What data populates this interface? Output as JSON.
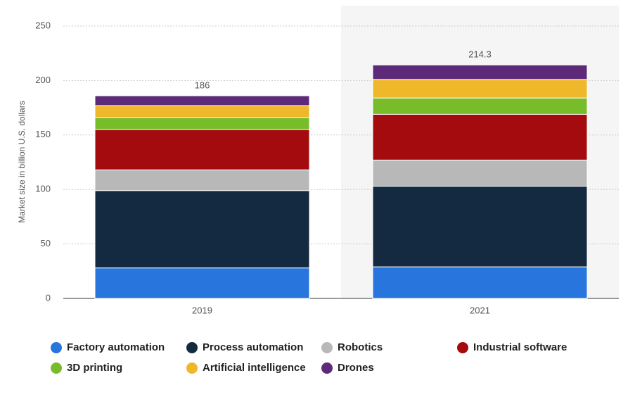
{
  "chart_data": {
    "type": "stacked-bar",
    "y_label": "Market size in billion U.S. dollars",
    "categories": [
      "2019",
      "2021"
    ],
    "series": [
      {
        "name": "Factory automation",
        "color": "#2876dd",
        "values": [
          28,
          29
        ]
      },
      {
        "name": "Process automation",
        "color": "#132a40",
        "values": [
          71,
          74
        ]
      },
      {
        "name": "Robotics",
        "color": "#b8b8b8",
        "values": [
          19,
          24
        ]
      },
      {
        "name": "Industrial software",
        "color": "#a30b0e",
        "values": [
          37,
          42
        ]
      },
      {
        "name": "3D printing",
        "color": "#78bc2a",
        "values": [
          11,
          15
        ]
      },
      {
        "name": "Artificial intelligence",
        "color": "#efb72a",
        "values": [
          11,
          17
        ]
      },
      {
        "name": "Drones",
        "color": "#5d2a7a",
        "values": [
          9,
          13.3
        ]
      }
    ],
    "totals": [
      186,
      214.3
    ],
    "ylim": [
      0,
      250
    ],
    "yticks": [
      0,
      50,
      100,
      150,
      200,
      250
    ],
    "grid": true
  }
}
